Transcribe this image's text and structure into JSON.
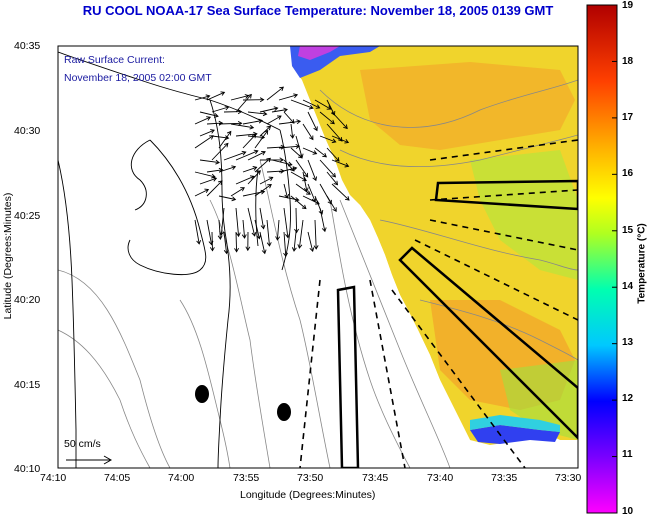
{
  "title": "RU COOL  NOAA-17  Sea Surface Temperature:  November 18, 2005 0139 GMT",
  "annotations": {
    "current_label": "Raw Surface Current:",
    "current_time": "November 18, 2005 02:00 GMT",
    "scale_label": "50 cm/s"
  },
  "axes": {
    "xlabel": "Longitude (Degrees:Minutes)",
    "ylabel": "Latitude (Degrees:Minutes)",
    "xticks": [
      "74:10",
      "74:05",
      "74:00",
      "73:55",
      "73:50",
      "73:45",
      "73:40",
      "73:35",
      "73:30"
    ],
    "yticks": [
      "40:35",
      "40:30",
      "40:25",
      "40:20",
      "40:15",
      "40:10"
    ]
  },
  "colorbar": {
    "label": "Temperature (°C)",
    "min": 10,
    "max": 19,
    "ticks": [
      "19",
      "18",
      "17",
      "16",
      "15",
      "14",
      "13",
      "12",
      "11",
      "10"
    ]
  },
  "colors": {
    "title": "#0000cc",
    "annotation": "#1a1aa0",
    "land": "#ffffff",
    "sst_main": "#f2d72a"
  }
}
